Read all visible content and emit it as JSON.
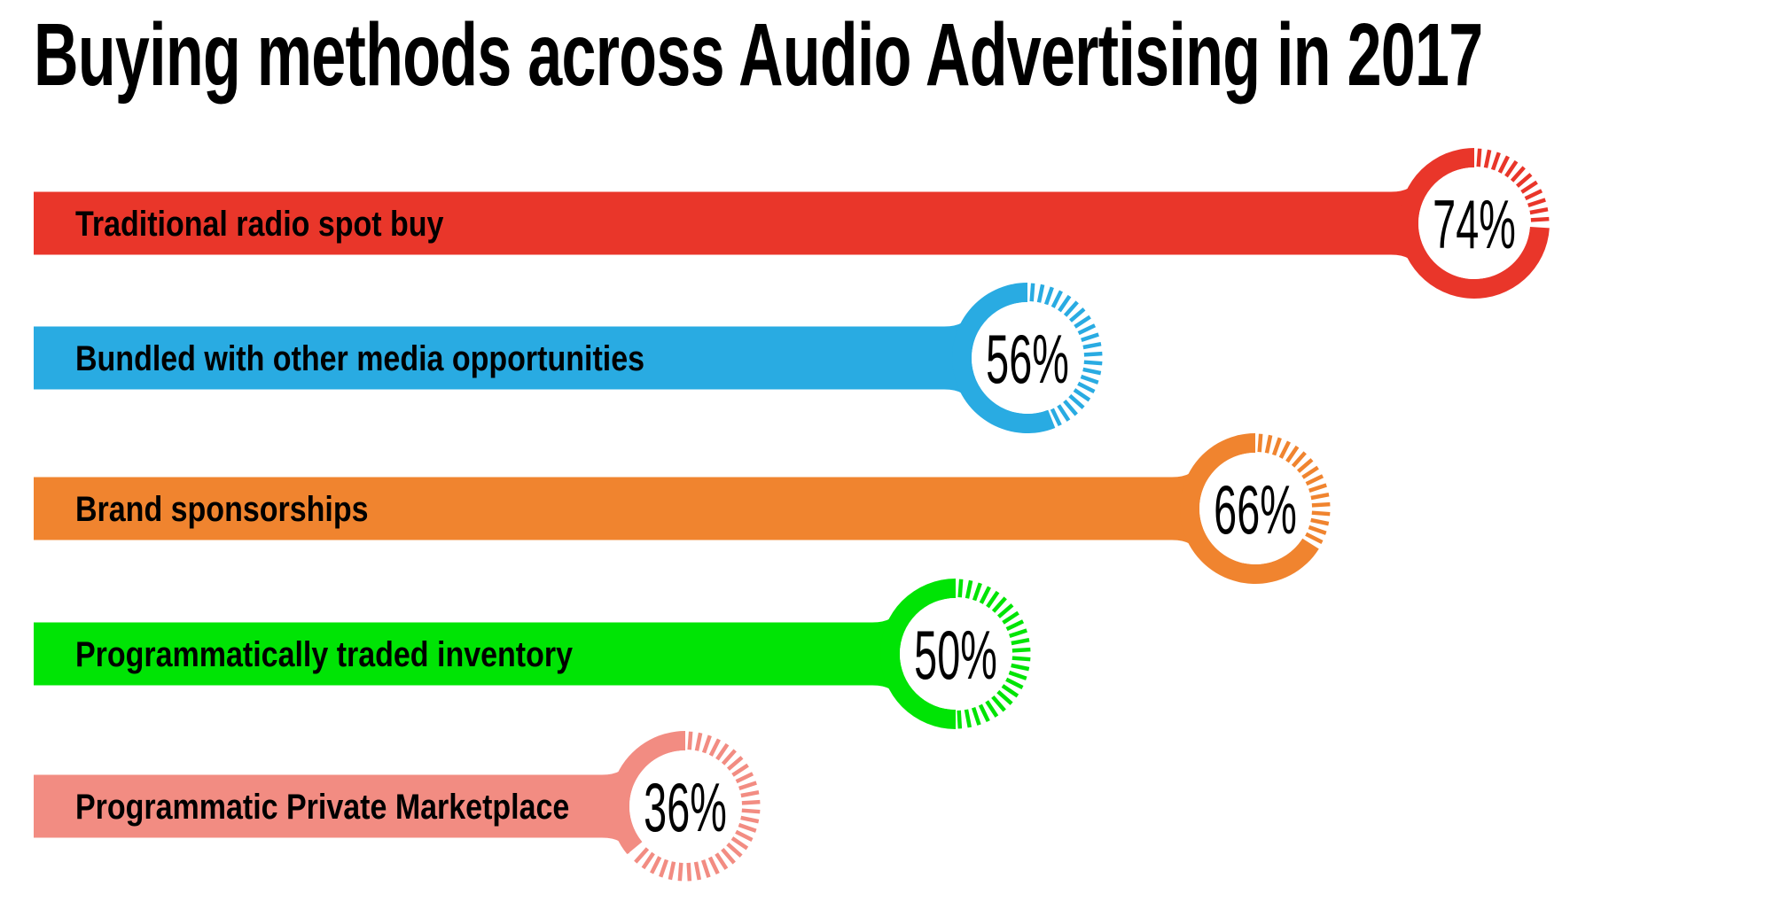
{
  "title": "Buying methods across Audio Advertising in 2017",
  "text_color": "#000000",
  "background_color": "#FFFFFF",
  "chart_data": {
    "type": "bar",
    "orientation": "horizontal",
    "title": "Buying methods across Audio Advertising in 2017",
    "xlabel": "",
    "ylabel": "",
    "unit": "%",
    "value_range": [
      0,
      100
    ],
    "grid": false,
    "legend": "none",
    "gauge_style": "solid arc equals value, dashed ticks equal remainder, clockwise from top",
    "categories": [
      "Traditional radio spot buy",
      "Bundled with other media opportunities",
      "Brand sponsorships",
      "Programmatically traded inventory",
      "Programmatic Private Marketplace"
    ],
    "values": [
      74,
      56,
      66,
      50,
      36
    ],
    "rows": [
      {
        "category": "Traditional radio spot buy",
        "value": 74,
        "value_label": "74%",
        "color": "#E9362A"
      },
      {
        "category": "Bundled with other media opportunities",
        "value": 56,
        "value_label": "56%",
        "color": "#29ABE2"
      },
      {
        "category": "Brand sponsorships",
        "value": 66,
        "value_label": "66%",
        "color": "#F0842F"
      },
      {
        "category": "Programmatically traded inventory",
        "value": 50,
        "value_label": "50%",
        "color": "#00E405"
      },
      {
        "category": "Programmatic Private Marketplace",
        "value": 36,
        "value_label": "36%",
        "color": "#F28C82"
      }
    ]
  }
}
